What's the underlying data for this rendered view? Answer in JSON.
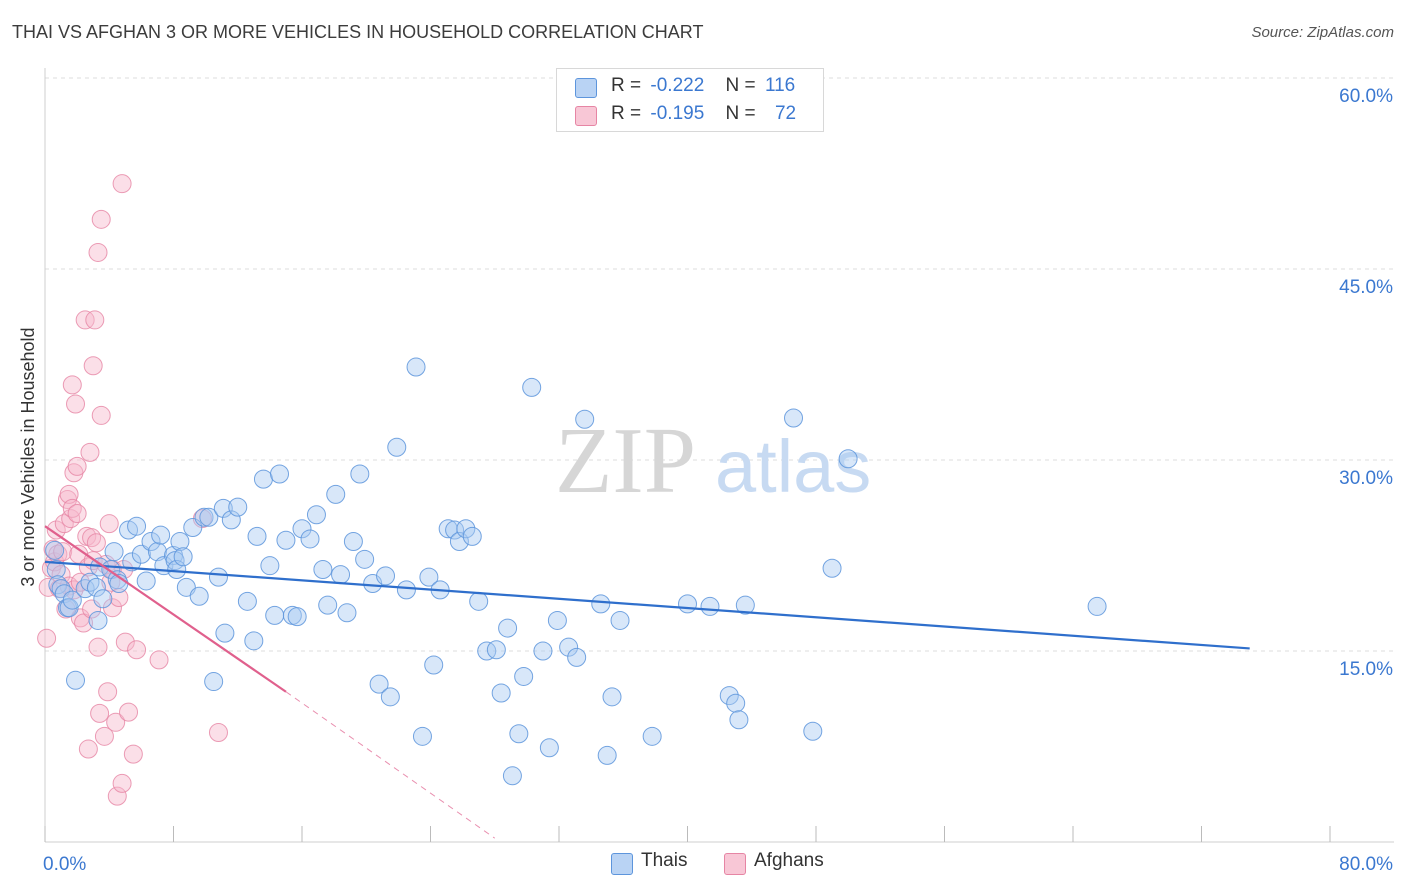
{
  "title": "THAI VS AFGHAN 3 OR MORE VEHICLES IN HOUSEHOLD CORRELATION CHART",
  "source": "Source: ZipAtlas.com",
  "watermark": {
    "zip": "ZIP",
    "atlas": "atlas"
  },
  "legend": {
    "rows": [
      {
        "r_label": "R =",
        "r_value": "-0.222",
        "n_label": "N =",
        "n_value": "116"
      },
      {
        "r_label": "R =",
        "r_value": "-0.195",
        "n_label": "N =",
        "n_value": "72"
      }
    ]
  },
  "colors": {
    "blue_fill": "#a9c9f2",
    "blue_stroke": "#5d95dc",
    "blue_line": "#2f6fcc",
    "pink_fill": "#f6b8cb",
    "pink_stroke": "#e685a4",
    "pink_line": "#e0608d",
    "axis_label": "#3b78d0",
    "grid": "#dcdcdc"
  },
  "chart_data": {
    "type": "scatter",
    "title": "THAI VS AFGHAN 3 OR MORE VEHICLES IN HOUSEHOLD CORRELATION CHART",
    "xlabel": "",
    "ylabel": "3 or more Vehicles in Household",
    "xlim": [
      0,
      80
    ],
    "ylim": [
      0,
      60
    ],
    "x_tick_labels": [
      "0.0%",
      "80.0%"
    ],
    "y_ticks": [
      15,
      30,
      45,
      60
    ],
    "y_tick_labels": [
      "15.0%",
      "30.0%",
      "45.0%",
      "60.0%"
    ],
    "legend_position": "bottom-center",
    "series": [
      {
        "name": "Thais",
        "r": -0.222,
        "n": 116,
        "trend": {
          "x": [
            0,
            75
          ],
          "y": [
            22.0,
            15.2
          ],
          "dashed_extension": false
        },
        "points": [
          [
            0.6,
            22.9
          ],
          [
            0.7,
            21.4
          ],
          [
            0.8,
            20.2
          ],
          [
            1,
            19.9
          ],
          [
            1.2,
            19.5
          ],
          [
            1.4,
            18.4
          ],
          [
            1.5,
            18.4
          ],
          [
            1.7,
            19.0
          ],
          [
            1.9,
            12.7
          ],
          [
            2.5,
            19.9
          ],
          [
            2.8,
            20.4
          ],
          [
            3.2,
            20.0
          ],
          [
            3.3,
            17.4
          ],
          [
            3.4,
            21.6
          ],
          [
            3.6,
            19.1
          ],
          [
            4.1,
            21.4
          ],
          [
            4.3,
            22.8
          ],
          [
            4.5,
            20.6
          ],
          [
            4.6,
            20.3
          ],
          [
            5.2,
            24.5
          ],
          [
            5.4,
            22.0
          ],
          [
            5.7,
            24.8
          ],
          [
            6.0,
            22.6
          ],
          [
            6.3,
            20.5
          ],
          [
            6.6,
            23.6
          ],
          [
            7.0,
            22.8
          ],
          [
            7.2,
            24.1
          ],
          [
            7.4,
            21.7
          ],
          [
            8.0,
            22.5
          ],
          [
            8.1,
            22.1
          ],
          [
            8.2,
            21.4
          ],
          [
            8.4,
            23.6
          ],
          [
            8.6,
            22.4
          ],
          [
            8.8,
            20.0
          ],
          [
            9.2,
            24.7
          ],
          [
            9.6,
            19.3
          ],
          [
            9.9,
            25.5
          ],
          [
            10.2,
            25.5
          ],
          [
            10.5,
            12.6
          ],
          [
            10.8,
            20.8
          ],
          [
            11.1,
            26.2
          ],
          [
            11.2,
            16.4
          ],
          [
            11.6,
            25.3
          ],
          [
            12.0,
            26.3
          ],
          [
            12.6,
            18.9
          ],
          [
            13.0,
            15.8
          ],
          [
            13.2,
            24.0
          ],
          [
            13.6,
            28.5
          ],
          [
            14.0,
            21.7
          ],
          [
            14.3,
            17.8
          ],
          [
            14.6,
            28.9
          ],
          [
            15.0,
            23.7
          ],
          [
            15.4,
            17.8
          ],
          [
            15.7,
            17.7
          ],
          [
            16.0,
            24.6
          ],
          [
            16.5,
            23.8
          ],
          [
            16.9,
            25.7
          ],
          [
            17.3,
            21.4
          ],
          [
            17.6,
            18.6
          ],
          [
            18.1,
            27.3
          ],
          [
            18.4,
            21.0
          ],
          [
            18.8,
            18.0
          ],
          [
            19.2,
            23.6
          ],
          [
            19.6,
            28.9
          ],
          [
            19.9,
            22.2
          ],
          [
            20.4,
            20.3
          ],
          [
            20.8,
            12.4
          ],
          [
            21.2,
            20.9
          ],
          [
            21.5,
            11.4
          ],
          [
            21.9,
            31.0
          ],
          [
            22.5,
            19.8
          ],
          [
            23.1,
            37.3
          ],
          [
            23.5,
            8.3
          ],
          [
            23.9,
            20.8
          ],
          [
            24.2,
            13.9
          ],
          [
            24.6,
            19.8
          ],
          [
            25.1,
            24.6
          ],
          [
            25.5,
            24.5
          ],
          [
            25.8,
            23.6
          ],
          [
            26.2,
            24.6
          ],
          [
            26.6,
            24.0
          ],
          [
            27.0,
            18.9
          ],
          [
            27.5,
            15.0
          ],
          [
            28.1,
            15.1
          ],
          [
            28.4,
            11.7
          ],
          [
            28.8,
            16.8
          ],
          [
            29.1,
            5.2
          ],
          [
            29.5,
            8.5
          ],
          [
            29.8,
            13.0
          ],
          [
            30.3,
            35.7
          ],
          [
            31.0,
            15.0
          ],
          [
            31.4,
            7.4
          ],
          [
            31.9,
            17.4
          ],
          [
            32.6,
            15.3
          ],
          [
            33.1,
            14.5
          ],
          [
            33.6,
            33.2
          ],
          [
            34.6,
            18.7
          ],
          [
            35.0,
            6.8
          ],
          [
            35.3,
            11.4
          ],
          [
            35.8,
            17.4
          ],
          [
            37.8,
            8.3
          ],
          [
            40.0,
            18.7
          ],
          [
            41.4,
            18.5
          ],
          [
            42.6,
            11.5
          ],
          [
            43.0,
            10.9
          ],
          [
            43.2,
            9.6
          ],
          [
            43.6,
            18.6
          ],
          [
            46.6,
            33.3
          ],
          [
            47.8,
            8.7
          ],
          [
            49.0,
            21.5
          ],
          [
            50.0,
            30.1
          ],
          [
            65.5,
            18.5
          ]
        ]
      },
      {
        "name": "Afghans",
        "r": -0.195,
        "n": 72,
        "trend": {
          "x": [
            0,
            15
          ],
          "y": [
            24.8,
            11.8
          ],
          "dashed_extension": true,
          "dashed_to": [
            28,
            0.3
          ]
        },
        "points": [
          [
            0.1,
            16.0
          ],
          [
            0.2,
            20.0
          ],
          [
            0.4,
            21.5
          ],
          [
            0.5,
            23.0
          ],
          [
            0.6,
            22.0
          ],
          [
            0.7,
            24.5
          ],
          [
            0.8,
            22.6
          ],
          [
            0.9,
            19.9
          ],
          [
            1.0,
            21.0
          ],
          [
            1.1,
            22.8
          ],
          [
            1.2,
            25.0
          ],
          [
            1.3,
            18.3
          ],
          [
            1.4,
            26.9
          ],
          [
            1.5,
            27.3
          ],
          [
            1.5,
            20.1
          ],
          [
            1.6,
            25.4
          ],
          [
            1.7,
            26.2
          ],
          [
            1.7,
            35.9
          ],
          [
            1.8,
            29.0
          ],
          [
            1.8,
            19.8
          ],
          [
            1.9,
            34.4
          ],
          [
            2.0,
            29.5
          ],
          [
            2.0,
            25.8
          ],
          [
            2.1,
            22.6
          ],
          [
            2.2,
            17.6
          ],
          [
            2.2,
            20.4
          ],
          [
            2.4,
            17.2
          ],
          [
            2.5,
            41.0
          ],
          [
            2.6,
            24.0
          ],
          [
            2.7,
            21.6
          ],
          [
            2.7,
            7.3
          ],
          [
            2.8,
            30.6
          ],
          [
            2.9,
            23.9
          ],
          [
            2.9,
            18.3
          ],
          [
            3.0,
            22.1
          ],
          [
            3.0,
            37.4
          ],
          [
            3.1,
            41.0
          ],
          [
            3.2,
            23.5
          ],
          [
            3.3,
            46.3
          ],
          [
            3.3,
            15.3
          ],
          [
            3.4,
            10.1
          ],
          [
            3.5,
            33.5
          ],
          [
            3.5,
            48.9
          ],
          [
            3.7,
            8.3
          ],
          [
            3.8,
            21.8
          ],
          [
            3.9,
            11.8
          ],
          [
            4.0,
            25.0
          ],
          [
            4.1,
            20.4
          ],
          [
            4.2,
            18.4
          ],
          [
            4.2,
            21.4
          ],
          [
            4.4,
            9.4
          ],
          [
            4.5,
            3.6
          ],
          [
            4.6,
            19.2
          ],
          [
            4.8,
            51.7
          ],
          [
            4.8,
            4.6
          ],
          [
            4.9,
            21.4
          ],
          [
            5.0,
            15.7
          ],
          [
            5.2,
            10.2
          ],
          [
            5.5,
            6.9
          ],
          [
            5.7,
            15.1
          ],
          [
            7.1,
            14.3
          ],
          [
            9.8,
            25.4
          ],
          [
            10.8,
            8.6
          ]
        ]
      }
    ]
  }
}
